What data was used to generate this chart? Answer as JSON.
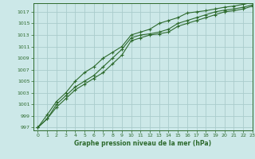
{
  "x": [
    0,
    1,
    2,
    3,
    4,
    5,
    6,
    7,
    8,
    9,
    10,
    11,
    12,
    13,
    14,
    15,
    16,
    17,
    18,
    19,
    20,
    21,
    22,
    23
  ],
  "line1": [
    997.0,
    998.5,
    1000.5,
    1002.0,
    1003.5,
    1004.5,
    1005.5,
    1006.5,
    1008.0,
    1009.5,
    1012.0,
    1012.5,
    1013.0,
    1013.2,
    1013.5,
    1014.5,
    1015.0,
    1015.5,
    1016.0,
    1016.5,
    1017.0,
    1017.2,
    1017.5,
    1018.0
  ],
  "line2": [
    997.0,
    998.5,
    1001.0,
    1002.5,
    1004.0,
    1005.0,
    1006.0,
    1007.5,
    1009.0,
    1010.5,
    1012.5,
    1013.0,
    1013.2,
    1013.5,
    1014.0,
    1015.0,
    1015.5,
    1016.0,
    1016.5,
    1017.0,
    1017.3,
    1017.5,
    1017.8,
    1018.2
  ],
  "line3": [
    997.0,
    999.2,
    1001.5,
    1003.0,
    1005.0,
    1006.5,
    1007.5,
    1009.0,
    1010.0,
    1011.0,
    1013.0,
    1013.5,
    1014.0,
    1015.0,
    1015.5,
    1016.0,
    1016.8,
    1017.0,
    1017.2,
    1017.5,
    1017.8,
    1018.0,
    1018.3,
    1018.6
  ],
  "bg_color": "#cce8e8",
  "line_color": "#2d6a2d",
  "grid_color": "#aacccc",
  "xlabel": "Graphe pression niveau de la mer (hPa)",
  "ylim": [
    996.5,
    1018.5
  ],
  "xlim": [
    -0.5,
    23
  ],
  "yticks": [
    997,
    999,
    1001,
    1003,
    1005,
    1007,
    1009,
    1011,
    1013,
    1015,
    1017
  ],
  "xticks": [
    0,
    1,
    2,
    3,
    4,
    5,
    6,
    7,
    8,
    9,
    10,
    11,
    12,
    13,
    14,
    15,
    16,
    17,
    18,
    19,
    20,
    21,
    22,
    23
  ]
}
